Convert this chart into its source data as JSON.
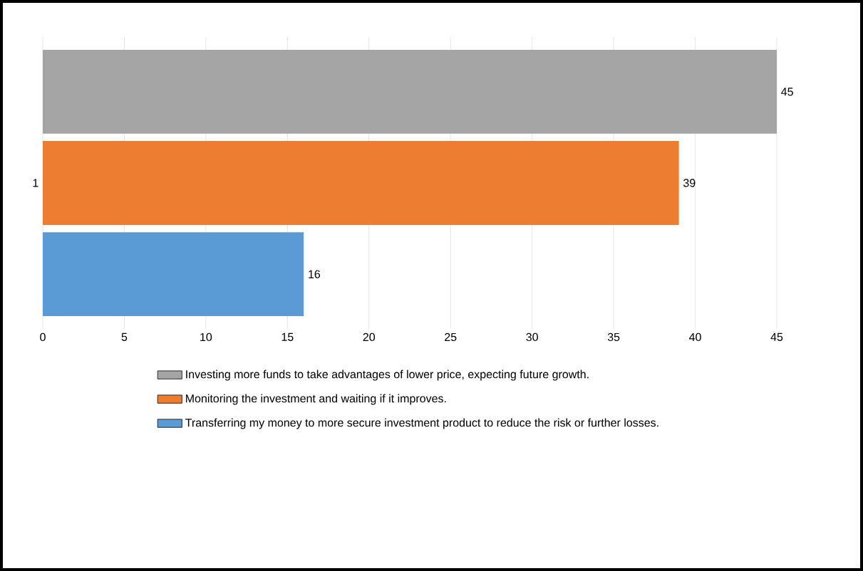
{
  "chart_data": {
    "type": "bar",
    "orientation": "horizontal",
    "categories": [
      null,
      "1",
      null
    ],
    "series": [
      {
        "name": "Investing more funds to take advantages of lower price, expecting future growth.",
        "color": "#a5a5a5",
        "values": [
          45,
          null,
          null
        ]
      },
      {
        "name": "Monitoring the investment and waiting if it improves.",
        "color": "#ed7d31",
        "values": [
          null,
          39,
          null
        ]
      },
      {
        "name": "Transferring my money to more secure investment product to reduce the risk or further losses.",
        "color": "#5b9bd5",
        "values": [
          null,
          null,
          16
        ]
      }
    ],
    "xlim": [
      0,
      45
    ],
    "xticks": [
      0,
      5,
      10,
      15,
      20,
      25,
      30,
      35,
      40,
      45
    ],
    "grid": "x",
    "legend": "bottom",
    "data_labels": true
  }
}
